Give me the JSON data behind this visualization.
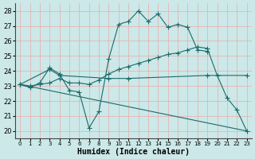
{
  "xlabel": "Humidex (Indice chaleur)",
  "xlim": [
    -0.5,
    23.5
  ],
  "ylim": [
    19.5,
    28.5
  ],
  "yticks": [
    20,
    21,
    22,
    23,
    24,
    25,
    26,
    27,
    28
  ],
  "xticks": [
    0,
    1,
    2,
    3,
    4,
    5,
    6,
    7,
    8,
    9,
    10,
    11,
    12,
    13,
    14,
    15,
    16,
    17,
    18,
    19,
    20,
    21,
    22,
    23
  ],
  "bg_color": "#cce8e8",
  "grid_color": "#e8aaaa",
  "line_color": "#1a6b6b",
  "line1_x": [
    0,
    1,
    2,
    3,
    4,
    5,
    6,
    7,
    8,
    9,
    10,
    11,
    12,
    13,
    14,
    15,
    16,
    17,
    18,
    19
  ],
  "line1_y": [
    23.1,
    22.9,
    23.2,
    24.2,
    23.8,
    22.7,
    22.6,
    20.2,
    21.3,
    24.8,
    27.1,
    27.3,
    28.0,
    27.3,
    27.8,
    26.9,
    27.1,
    26.9,
    25.4,
    25.3
  ],
  "line2_x": [
    0,
    1,
    2,
    3,
    4,
    5,
    6,
    7,
    8,
    9,
    10,
    11,
    12,
    13,
    14,
    15,
    16,
    17,
    18,
    19,
    20,
    21,
    22,
    23
  ],
  "line2_y": [
    23.1,
    23.0,
    23.1,
    23.2,
    23.5,
    23.2,
    23.2,
    23.1,
    23.4,
    23.8,
    24.1,
    24.3,
    24.5,
    24.7,
    24.9,
    25.1,
    25.2,
    25.4,
    25.6,
    25.5,
    23.7,
    22.2,
    21.4,
    20.0
  ],
  "line3_x": [
    0,
    3,
    4,
    9,
    11,
    19,
    23
  ],
  "line3_y": [
    23.1,
    24.1,
    23.7,
    23.5,
    23.5,
    23.7,
    23.7
  ],
  "line4_x": [
    0,
    23
  ],
  "line4_y": [
    23.1,
    20.0
  ],
  "tick_fontsize": 6,
  "label_fontsize": 7,
  "linewidth": 0.8,
  "marker_size": 2.0
}
